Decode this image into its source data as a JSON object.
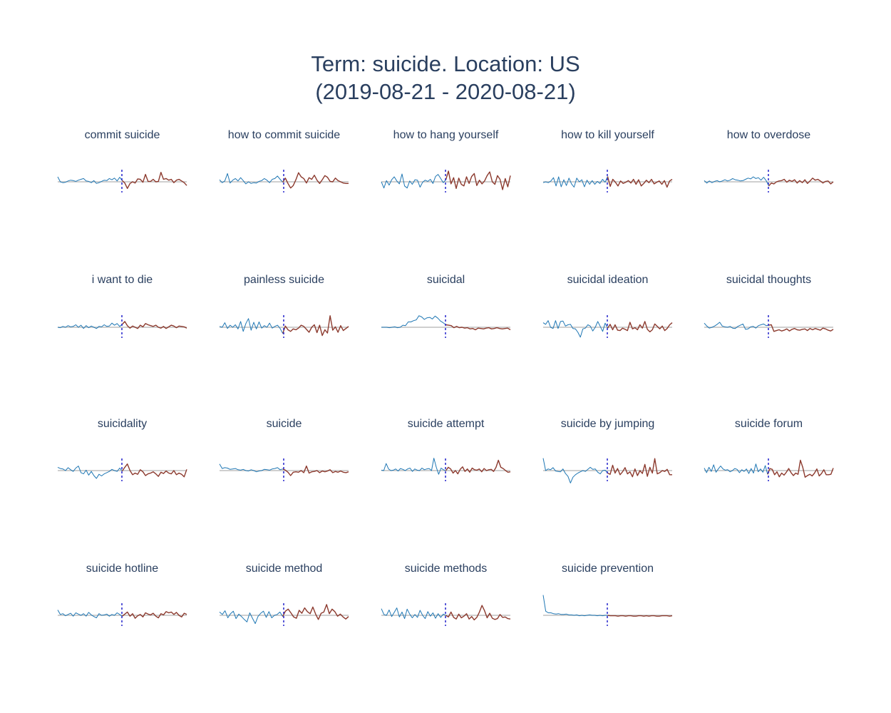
{
  "title": {
    "line1": "Term: suicide. Location: US",
    "line2": "(2019-08-21 - 2020-08-21)"
  },
  "colors": {
    "pre": "#1f77b4",
    "post": "#8c3a2e",
    "baseline": "#bfbfbf",
    "split": "#2222cc",
    "text": "#2a3f5f"
  },
  "chart_data": {
    "type": "line",
    "grid": false,
    "legend": "none",
    "series": [
      {
        "name": "commit suicide",
        "values": [
          1.2,
          0.0,
          -0.2,
          -0.1,
          0.2,
          0.4,
          0.3,
          0.1,
          0.4,
          0.6,
          0.8,
          0.2,
          0.1,
          -0.2,
          0.3,
          -0.4,
          -0.2,
          0.1,
          0.4,
          0.3,
          0.8,
          0.5,
          0.9,
          0.2,
          1.1,
          0.3,
          -0.3,
          -1.6,
          -0.4,
          0.0,
          -0.3,
          0.7,
          0.6,
          -0.1,
          1.8,
          0.1,
          0.1,
          0.6,
          0.0,
          0.1,
          2.3,
          0.6,
          0.8,
          0.4,
          0.6,
          -0.2,
          0.4,
          0.6,
          0.2,
          -0.2,
          -0.9
        ]
      },
      {
        "name": "how to commit suicide",
        "values": [
          0.5,
          -0.2,
          0.2,
          2.0,
          -0.3,
          0.4,
          0.8,
          0.2,
          1.0,
          0.3,
          -0.5,
          0.0,
          -0.4,
          -0.2,
          -0.3,
          0.1,
          0.3,
          0.8,
          0.4,
          -0.2,
          0.6,
          0.8,
          1.4,
          0.6,
          -0.1,
          0.9,
          -0.4,
          -1.5,
          -0.9,
          0.5,
          2.2,
          1.2,
          0.8,
          -0.3,
          1.0,
          0.6,
          1.6,
          0.4,
          -0.4,
          0.5,
          1.5,
          1.1,
          0.1,
          0.0,
          0.9,
          0.3,
          0.0,
          -0.3,
          -0.4,
          -0.4
        ]
      },
      {
        "name": "how to hang yourself",
        "values": [
          0.0,
          -1.5,
          0.3,
          -0.8,
          0.5,
          1.2,
          0.2,
          -0.5,
          1.9,
          -1.0,
          -1.5,
          0.2,
          -0.6,
          0.5,
          0.4,
          -1.3,
          -0.1,
          0.4,
          0.1,
          0.6,
          -0.4,
          1.3,
          1.8,
          0.8,
          -0.2,
          0.5,
          2.6,
          -0.5,
          1.0,
          -1.6,
          0.9,
          -0.6,
          -1.0,
          1.2,
          -0.4,
          1.3,
          2.0,
          -0.9,
          0.4,
          -0.5,
          0.2,
          1.5,
          2.4,
          0.0,
          -0.6,
          1.5,
          0.6,
          -1.9,
          0.8,
          -1.2,
          1.5
        ]
      },
      {
        "name": "how to kill yourself",
        "values": [
          -0.2,
          0.0,
          -0.2,
          0.2,
          1.0,
          -1.0,
          1.2,
          -1.2,
          0.5,
          -0.9,
          0.9,
          -0.5,
          -1.3,
          0.9,
          0.0,
          0.5,
          -1.2,
          0.4,
          -0.6,
          0.3,
          -0.6,
          0.1,
          -0.4,
          0.6,
          -0.1,
          1.3,
          -1.1,
          0.6,
          -0.1,
          -1.0,
          0.2,
          -0.4,
          -0.1,
          0.3,
          -0.3,
          0.6,
          -0.6,
          0.5,
          -1.0,
          -0.4,
          0.4,
          -0.2,
          0.6,
          -0.5,
          -0.1,
          0.2,
          -0.6,
          0.3,
          -1.3,
          0.2,
          0.6
        ]
      },
      {
        "name": "how to overdose",
        "values": [
          0.3,
          -0.3,
          0.2,
          -0.2,
          0.1,
          0.3,
          0.0,
          0.2,
          0.5,
          0.2,
          0.4,
          0.8,
          0.5,
          0.4,
          0.2,
          0.3,
          0.6,
          0.9,
          0.7,
          1.2,
          0.8,
          1.0,
          0.4,
          1.1,
          0.3,
          -1.0,
          -0.3,
          -0.5,
          0.0,
          0.2,
          0.3,
          0.6,
          -0.1,
          0.4,
          0.1,
          0.5,
          -0.3,
          0.3,
          -0.2,
          0.5,
          -0.4,
          0.2,
          0.9,
          0.4,
          0.6,
          0.2,
          -0.3,
          0.1,
          0.2,
          -0.5,
          0.0
        ]
      },
      {
        "name": "i want to die",
        "values": [
          0.0,
          -0.1,
          0.2,
          0.0,
          0.4,
          0.1,
          0.2,
          0.6,
          0.0,
          0.5,
          -0.3,
          0.4,
          -0.1,
          0.3,
          0.0,
          -0.3,
          0.2,
          0.1,
          0.6,
          0.2,
          0.3,
          1.0,
          0.5,
          0.9,
          0.2,
          0.7,
          1.4,
          0.4,
          -0.2,
          0.3,
          0.0,
          -0.3,
          0.5,
          0.1,
          0.9,
          0.6,
          0.4,
          0.2,
          0.5,
          0.0,
          -0.2,
          0.2,
          -0.3,
          0.1,
          0.5,
          0.3,
          -0.1,
          0.3,
          0.2,
          0.1,
          -0.2
        ]
      },
      {
        "name": "painless suicide",
        "values": [
          0.2,
          0.0,
          1.1,
          -0.3,
          0.5,
          0.0,
          0.6,
          -0.4,
          1.4,
          -1.0,
          0.9,
          2.1,
          -0.7,
          1.2,
          -0.4,
          1.3,
          -0.2,
          0.4,
          0.0,
          1.0,
          -0.2,
          0.2,
          0.5,
          -0.3,
          -1.5,
          0.3,
          -0.6,
          -1.0,
          -0.4,
          -0.6,
          -0.2,
          0.5,
          0.2,
          -0.5,
          -1.2,
          0.0,
          0.6,
          -1.3,
          0.5,
          -2.0,
          -0.6,
          -1.4,
          2.8,
          -0.7,
          0.1,
          -1.2,
          0.4,
          -0.8,
          -0.3,
          0.2
        ]
      },
      {
        "name": "suicidal",
        "values": [
          0.0,
          0.0,
          0.0,
          -0.1,
          0.0,
          0.1,
          -0.1,
          0.0,
          0.5,
          0.4,
          1.3,
          1.3,
          1.6,
          1.8,
          2.8,
          2.5,
          1.9,
          2.3,
          2.4,
          2.0,
          2.7,
          2.2,
          1.5,
          1.1,
          0.6,
          0.5,
          0.4,
          -0.1,
          0.2,
          -0.1,
          0.0,
          -0.2,
          -0.1,
          -0.4,
          -0.3,
          -0.6,
          -0.2,
          -0.3,
          -0.4,
          -0.2,
          -0.1,
          -0.4,
          -0.3,
          -0.1,
          -0.3,
          -0.4,
          -0.3,
          -0.2,
          -0.6
        ]
      },
      {
        "name": "suicidal ideation",
        "values": [
          1.1,
          0.7,
          1.6,
          0.0,
          -0.3,
          1.6,
          -0.3,
          1.4,
          1.5,
          0.3,
          0.6,
          0.7,
          -0.3,
          -0.4,
          -1.2,
          -2.4,
          -0.4,
          -0.2,
          0.6,
          0.3,
          -0.9,
          0.0,
          1.4,
          0.2,
          -1.0,
          1.0,
          -0.2,
          0.7,
          -0.6,
          0.6,
          -0.7,
          -0.8,
          -0.2,
          -0.5,
          -0.8,
          1.2,
          -0.4,
          -0.1,
          -0.6,
          0.6,
          -0.2,
          1.4,
          -0.5,
          -1.1,
          -0.6,
          0.8,
          0.2,
          -0.4,
          0.3,
          -0.8,
          -0.3,
          0.6,
          1.1
        ]
      },
      {
        "name": "suicidal thoughts",
        "values": [
          1.0,
          0.3,
          -0.2,
          0.0,
          0.3,
          0.7,
          1.2,
          0.3,
          0.1,
          0.0,
          0.2,
          -0.2,
          -0.3,
          0.2,
          0.5,
          0.8,
          -0.5,
          -0.4,
          0.1,
          0.2,
          -0.2,
          0.4,
          0.6,
          0.8,
          0.4,
          0.5,
          0.6,
          -1.0,
          -0.8,
          -0.6,
          -0.9,
          -0.7,
          -0.4,
          -0.9,
          -0.5,
          -0.3,
          -0.6,
          -0.7,
          -0.5,
          -0.4,
          -0.8,
          -0.3,
          -0.6,
          -0.3,
          -0.5,
          -0.7,
          -0.2,
          -0.4,
          -0.7,
          -0.9,
          -0.5
        ]
      },
      {
        "name": "suicidality",
        "values": [
          0.8,
          0.5,
          0.4,
          0.0,
          0.7,
          0.2,
          -0.2,
          0.6,
          1.1,
          -0.5,
          -0.8,
          0.1,
          -1.1,
          -0.2,
          -1.2,
          -1.9,
          -0.9,
          -1.3,
          -0.8,
          -0.5,
          -0.2,
          0.3,
          0.0,
          -0.2,
          0.6,
          -0.1,
          0.8,
          1.6,
          0.0,
          -1.0,
          -0.6,
          -0.9,
          0.2,
          -0.3,
          -1.2,
          -0.8,
          -0.6,
          -0.3,
          -0.8,
          -1.4,
          -0.4,
          -0.7,
          -0.1,
          -0.6,
          -0.8,
          0.0,
          -1.0,
          -0.6,
          -0.9,
          -1.5,
          0.3
        ]
      },
      {
        "name": "suicide",
        "values": [
          1.6,
          0.5,
          0.7,
          0.6,
          0.3,
          0.4,
          0.5,
          0.2,
          0.1,
          0.3,
          0.0,
          -0.1,
          0.2,
          0.0,
          -0.3,
          -0.1,
          0.0,
          0.3,
          0.2,
          0.1,
          0.4,
          0.5,
          0.7,
          0.2,
          0.4,
          0.1,
          -0.4,
          -1.2,
          -0.4,
          -0.3,
          -0.4,
          0.0,
          -0.5,
          1.1,
          -0.6,
          -0.3,
          -0.2,
          0.0,
          -0.5,
          -0.1,
          -0.3,
          -0.1,
          0.2,
          -0.5,
          -0.2,
          -0.4,
          -0.1,
          -0.4,
          -0.5,
          -0.3
        ]
      },
      {
        "name": "suicide attempt",
        "values": [
          0.1,
          0.0,
          1.7,
          0.4,
          0.0,
          0.1,
          0.4,
          -0.1,
          0.5,
          0.3,
          0.0,
          0.4,
          0.6,
          -0.2,
          0.4,
          0.1,
          0.0,
          0.6,
          0.2,
          0.4,
          0.5,
          0.0,
          3.0,
          0.8,
          -0.9,
          0.6,
          0.2,
          0.0,
          0.8,
          0.4,
          -0.6,
          0.0,
          -0.8,
          0.3,
          0.9,
          -0.2,
          0.4,
          -0.4,
          0.6,
          0.2,
          0.1,
          0.4,
          -0.3,
          0.5,
          0.0,
          0.2,
          0.3,
          -0.2,
          0.8,
          2.5,
          0.8,
          0.5,
          0.0,
          -0.4,
          -0.3
        ]
      },
      {
        "name": "suicide by jumping",
        "values": [
          3.0,
          0.0,
          0.4,
          0.2,
          0.7,
          -0.1,
          -0.2,
          -0.3,
          0.4,
          -0.7,
          -1.4,
          -3.0,
          -1.6,
          -1.0,
          -0.6,
          -0.3,
          0.0,
          -0.2,
          0.3,
          0.8,
          0.3,
          0.4,
          -0.4,
          -0.8,
          0.0,
          0.1,
          -0.6,
          -0.9,
          1.3,
          -0.6,
          0.5,
          -1.0,
          -0.3,
          0.7,
          -0.8,
          -0.3,
          -1.5,
          0.4,
          -1.2,
          0.0,
          -0.7,
          1.5,
          -1.4,
          0.8,
          -0.6,
          2.9,
          -0.8,
          -0.5,
          0.0,
          -0.2,
          0.3,
          -1.0,
          -1.0
        ]
      },
      {
        "name": "suicide forum",
        "values": [
          0.6,
          -0.5,
          0.8,
          -0.2,
          1.4,
          -0.4,
          0.4,
          1.1,
          0.4,
          0.1,
          0.2,
          -0.3,
          0.0,
          0.5,
          0.3,
          -0.5,
          0.2,
          -0.2,
          0.4,
          -0.7,
          0.5,
          -0.6,
          1.6,
          -0.3,
          0.4,
          -0.4,
          1.2,
          -0.9,
          0.5,
          0.3,
          -1.0,
          -0.3,
          -1.5,
          -0.6,
          -1.1,
          -0.4,
          0.5,
          -0.5,
          -1.2,
          -0.6,
          -0.9,
          2.5,
          0.8,
          -1.6,
          -1.2,
          -0.9,
          -1.3,
          -0.6,
          0.4,
          -1.3,
          -0.7,
          0.2,
          -1.0,
          -1.0,
          -0.9,
          0.6
        ]
      },
      {
        "name": "suicide hotline",
        "values": [
          1.3,
          0.2,
          0.4,
          -0.1,
          0.2,
          0.5,
          -0.2,
          0.6,
          0.3,
          0.0,
          0.4,
          -0.2,
          0.7,
          0.1,
          -0.3,
          -0.6,
          0.4,
          0.0,
          0.1,
          0.3,
          -0.2,
          0.2,
          0.0,
          0.6,
          0.2,
          -0.2,
          0.3,
          0.8,
          -0.2,
          0.4,
          -0.7,
          -0.1,
          0.2,
          -0.4,
          0.6,
          0.3,
          0.1,
          0.5,
          -0.2,
          -0.6,
          0.4,
          0.1,
          0.9,
          0.6,
          0.8,
          0.2,
          0.7,
          0.0,
          -0.4,
          0.5,
          0.2
        ]
      },
      {
        "name": "suicide method",
        "values": [
          0.8,
          0.2,
          1.1,
          -0.6,
          0.4,
          1.0,
          -0.8,
          0.3,
          -0.3,
          -1.0,
          -1.6,
          0.6,
          -0.7,
          -2.0,
          -0.3,
          0.5,
          1.0,
          -0.5,
          0.9,
          -0.6,
          0.0,
          0.2,
          0.8,
          -0.3,
          1.0,
          1.5,
          0.6,
          -0.4,
          -0.7,
          1.2,
          0.5,
          1.8,
          0.9,
          0.4,
          2.0,
          0.3,
          -1.0,
          0.5,
          0.8,
          2.6,
          0.4,
          1.5,
          0.9,
          -0.2,
          0.3,
          -0.4,
          -0.9,
          -0.3
        ]
      },
      {
        "name": "suicide methods",
        "values": [
          1.6,
          0.2,
          0.0,
          1.3,
          -0.3,
          0.7,
          1.8,
          -0.4,
          0.8,
          -0.8,
          1.5,
          0.3,
          -0.6,
          0.2,
          -0.5,
          1.2,
          0.0,
          -0.8,
          0.9,
          -0.2,
          0.6,
          -0.7,
          0.4,
          -0.5,
          0.3,
          0.0,
          -0.4,
          0.8,
          -0.5,
          -0.9,
          0.3,
          -0.6,
          -0.2,
          0.4,
          -0.9,
          -0.3,
          -1.1,
          -0.5,
          0.8,
          2.4,
          1.1,
          -0.6,
          0.5,
          -0.7,
          -1.0,
          -0.8,
          0.2,
          -0.5,
          -0.4,
          -0.8,
          -0.9
        ]
      },
      {
        "name": "suicide prevention",
        "values": [
          4.9,
          1.0,
          0.6,
          0.6,
          0.4,
          0.3,
          0.4,
          0.2,
          0.2,
          0.3,
          0.1,
          0.1,
          0.0,
          0.1,
          -0.1,
          0.0,
          -0.1,
          0.0,
          0.1,
          0.0,
          0.0,
          -0.1,
          0.0,
          -0.1,
          0.0,
          0.0,
          -0.1,
          -0.1,
          -0.1,
          -0.2,
          -0.1,
          -0.1,
          -0.2,
          -0.1,
          -0.1,
          -0.2,
          -0.2,
          -0.1,
          -0.1,
          -0.2,
          -0.1,
          -0.2,
          -0.1,
          -0.1,
          -0.2,
          -0.2,
          -0.1,
          -0.1,
          -0.1,
          -0.2,
          -0.1
        ]
      }
    ]
  }
}
